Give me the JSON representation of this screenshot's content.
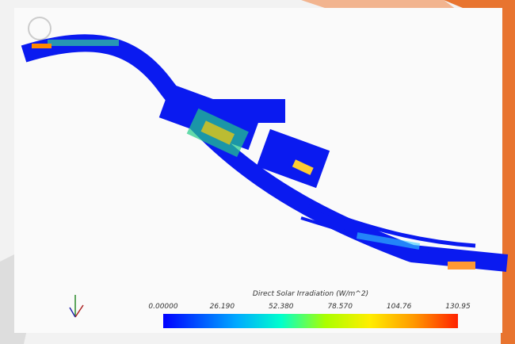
{
  "colorbar": {
    "title": "Direct Solar Irradiation (W/m^2)",
    "ticks": [
      "0.00000",
      "26.190",
      "52.380",
      "78.570",
      "104.76",
      "130.95"
    ]
  }
}
